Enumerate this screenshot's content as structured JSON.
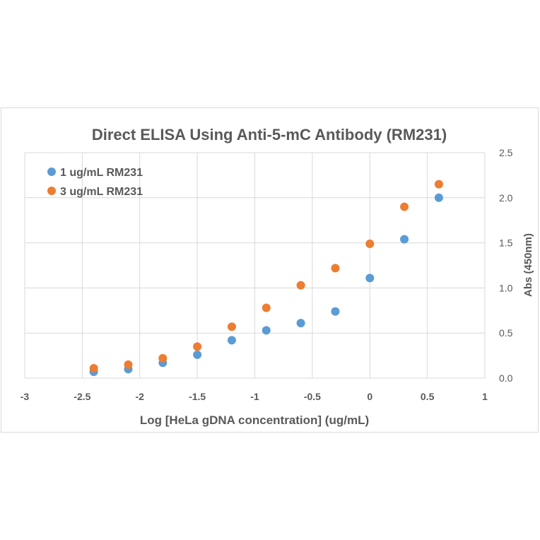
{
  "chart_data": {
    "type": "scatter",
    "title": "Direct ELISA Using Anti-5-mC Antibody (RM231)",
    "xlabel": "Log [HeLa gDNA concentration] (ug/mL)",
    "ylabel": "Abs (450nm)",
    "xlim": [
      -3,
      1
    ],
    "ylim": [
      0,
      2.5
    ],
    "xticks": [
      "-3",
      "-2.5",
      "-2",
      "-1.5",
      "-1",
      "-0.5",
      "0",
      "0.5",
      "1"
    ],
    "xtick_values": [
      -3,
      -2.5,
      -2,
      -1.5,
      -1,
      -0.5,
      0,
      0.5,
      1
    ],
    "yticks": [
      "0.0",
      "0.5",
      "1.0",
      "1.5",
      "2.0",
      "2.5"
    ],
    "ytick_values": [
      0,
      0.5,
      1,
      1.5,
      2,
      2.5
    ],
    "grid": true,
    "legend_position": "top-left",
    "x": [
      -2.4,
      -2.1,
      -1.8,
      -1.5,
      -1.2,
      -0.9,
      -0.6,
      -0.3,
      0,
      0.3,
      0.6
    ],
    "series": [
      {
        "name": "1 ug/mL RM231",
        "color": "#5b9bd5",
        "values": [
          0.07,
          0.1,
          0.17,
          0.26,
          0.42,
          0.53,
          0.61,
          0.74,
          1.11,
          1.54,
          2.0
        ]
      },
      {
        "name": "3 ug/mL RM231",
        "color": "#ed7d31",
        "values": [
          0.11,
          0.15,
          0.22,
          0.35,
          0.57,
          0.78,
          1.03,
          1.22,
          1.49,
          1.9,
          2.15
        ]
      }
    ]
  }
}
